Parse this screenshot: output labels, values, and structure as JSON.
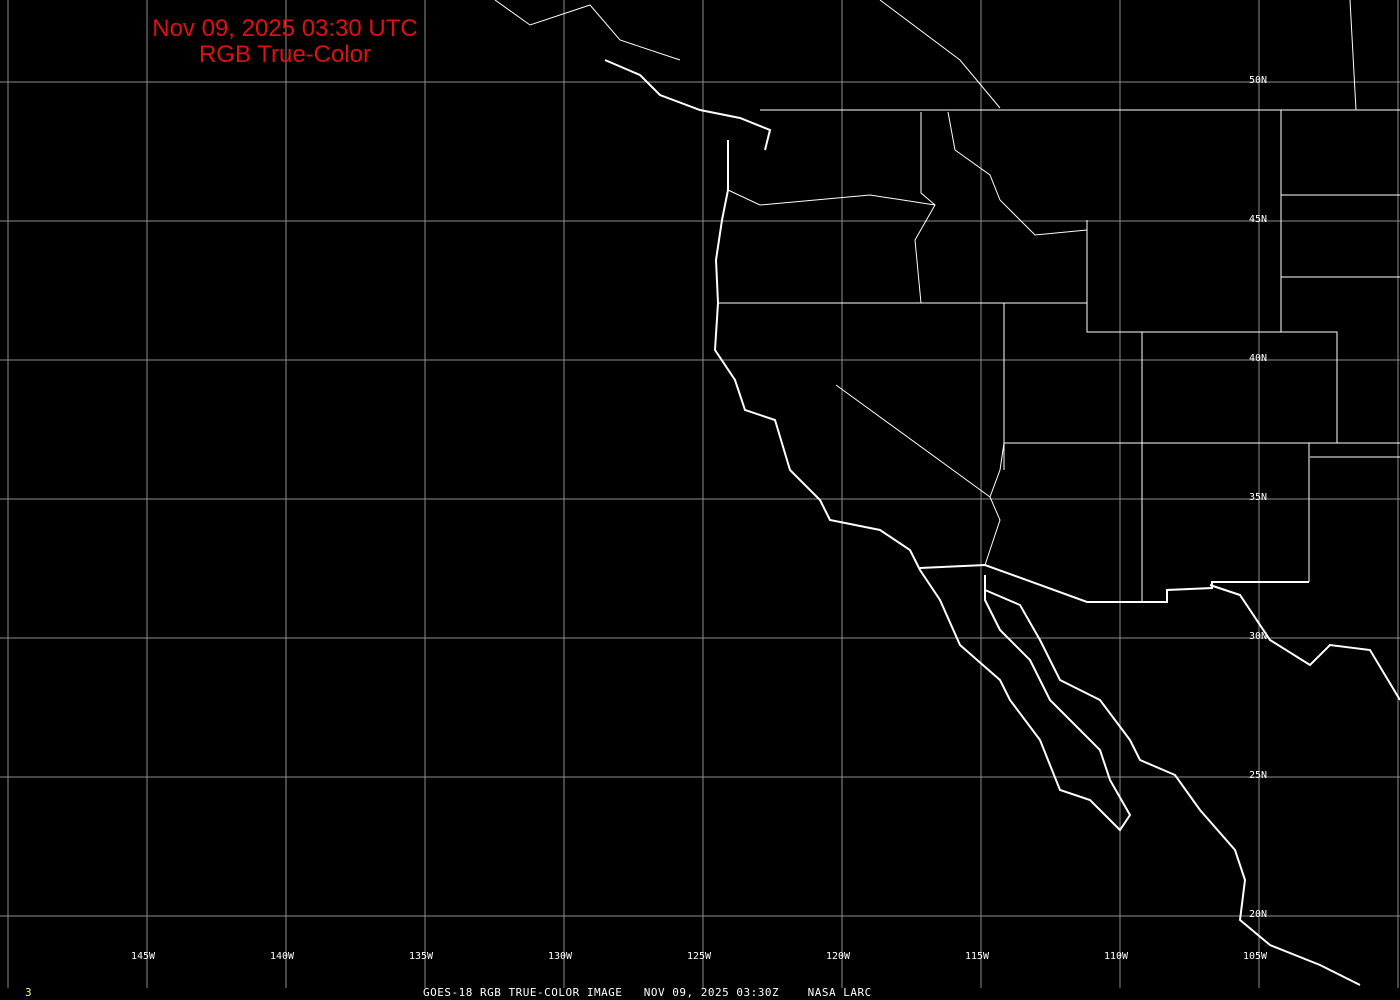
{
  "title": {
    "line1": "Nov 09, 2025 03:30 UTC",
    "line2": "RGB True-Color"
  },
  "longitude_labels": [
    "145W",
    "140W",
    "135W",
    "130W",
    "125W",
    "120W",
    "115W",
    "110W",
    "105W"
  ],
  "latitude_labels": [
    "50N",
    "45N",
    "40N",
    "35N",
    "30N",
    "25N",
    "20N"
  ],
  "footer": {
    "frame": "3",
    "caption": "GOES-18 RGB TRUE-COLOR IMAGE   NOV 09, 2025 03:30Z    NASA LARC"
  },
  "colors": {
    "title": "#e01010",
    "grid": "#8c8c8c",
    "coast": "#ffffff",
    "frame_number": "#ffff66"
  }
}
